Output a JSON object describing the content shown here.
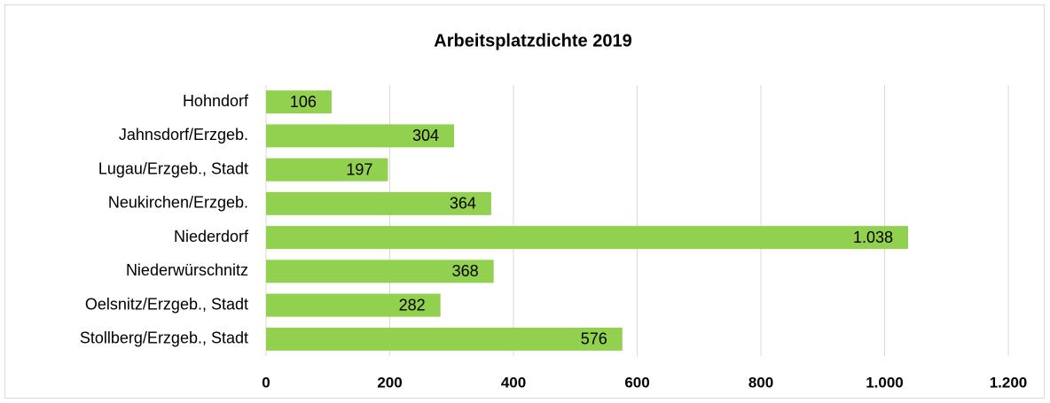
{
  "chart_data": {
    "type": "bar",
    "orientation": "horizontal",
    "title": "Arbeitsplatzdichte 2019",
    "categories": [
      "Hohndorf",
      "Jahnsdorf/Erzgeb.",
      "Lugau/Erzgeb., Stadt",
      "Neukirchen/Erzgeb.",
      "Niederdorf",
      "Niederwürschnitz",
      "Oelsnitz/Erzgeb., Stadt",
      "Stollberg/Erzgeb., Stadt"
    ],
    "values": [
      106,
      304,
      197,
      364,
      1038,
      368,
      282,
      576
    ],
    "value_labels": [
      "106",
      "304",
      "197",
      "364",
      "1.038",
      "368",
      "282",
      "576"
    ],
    "color": "#92d050",
    "xlim": [
      0,
      1200
    ],
    "xticks": [
      0,
      200,
      400,
      600,
      800,
      {
        "value": 1000,
        "label": "1.000"
      },
      {
        "value": 1200,
        "label": "1.200"
      }
    ],
    "grid": true
  }
}
